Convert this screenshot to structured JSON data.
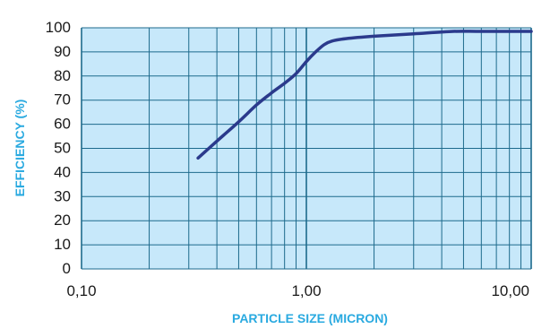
{
  "chart_data": {
    "type": "line",
    "xlabel": "PARTICLE SIZE (MICRON)",
    "ylabel": "EFFICIENCY (%)",
    "x_scale": "log",
    "xlim": [
      0.1,
      10
    ],
    "ylim": [
      0,
      100
    ],
    "x_ticks": [
      {
        "value": 0.1,
        "label": "0,10"
      },
      {
        "value": 1,
        "label": "1,00"
      },
      {
        "value": 10,
        "label": "10,00"
      }
    ],
    "y_ticks": [
      {
        "value": 0,
        "label": "0"
      },
      {
        "value": 10,
        "label": "10"
      },
      {
        "value": 20,
        "label": "20"
      },
      {
        "value": 30,
        "label": "30"
      },
      {
        "value": 40,
        "label": "40"
      },
      {
        "value": 50,
        "label": "50"
      },
      {
        "value": 60,
        "label": "60"
      },
      {
        "value": 70,
        "label": "70"
      },
      {
        "value": 80,
        "label": "80"
      },
      {
        "value": 90,
        "label": "90"
      },
      {
        "value": 100,
        "label": "100"
      }
    ],
    "grid": true,
    "series": [
      {
        "x": [
          0.33,
          0.4,
          0.5,
          0.6,
          0.7,
          0.8,
          0.9,
          1.0,
          1.1,
          1.2,
          1.3,
          1.5,
          2.0,
          3.0,
          4.5,
          6.0,
          10.0
        ],
        "y": [
          46,
          53,
          61,
          68,
          73,
          77,
          81,
          86,
          90,
          93,
          94.5,
          95.5,
          96.5,
          97.5,
          98.5,
          98.5,
          98.5
        ]
      }
    ],
    "colors": {
      "plot_background": "#c7e8fa",
      "grid": "#1d6a8c",
      "line": "#2b3a8c",
      "axis_title": "#2aaae0"
    }
  }
}
